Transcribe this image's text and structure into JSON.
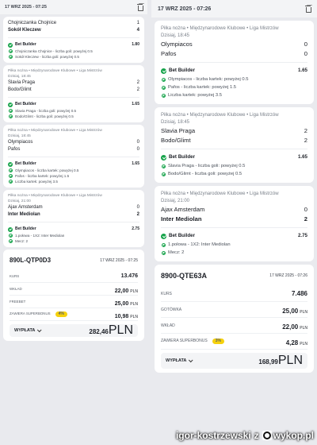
{
  "left": {
    "header": {
      "date": "17 WRZ 2025 - 07:25"
    },
    "cards": [
      {
        "meta_league": "",
        "meta_time": "",
        "teams": [
          {
            "name": "Chojniczanka Chojnice",
            "score": "1"
          },
          {
            "name": "Sokół Kleczew",
            "score": "4"
          }
        ],
        "bb_label": "Bet Builder",
        "bb_odds": "1.80",
        "selections": [
          "Chojniczanka Chojnice - liczba goli: powyżej 0.5",
          "Sokół Kleczew - liczba goli: powyżej 0.5"
        ]
      },
      {
        "meta_league": "Piłka nożna • Międzynarodowe Klubowe • Liga Mistrzów",
        "meta_time": "Dzisiaj, 18:45",
        "teams": [
          {
            "name": "Slavia Praga",
            "score": "2"
          },
          {
            "name": "Bodo/Glimt",
            "score": "2"
          }
        ],
        "bb_label": "Bet Builder",
        "bb_odds": "1.65",
        "selections": [
          "Slavia Praga - liczba goli: powyżej 0.5",
          "Bodo/Glimt - liczba goli: powyżej 0.5"
        ]
      },
      {
        "meta_league": "Piłka nożna • Międzynarodowe Klubowe • Liga Mistrzów",
        "meta_time": "Dzisiaj, 18:45",
        "teams": [
          {
            "name": "Olympiacos",
            "score": "0"
          },
          {
            "name": "Pafos",
            "score": "0"
          }
        ],
        "bb_label": "Bet Builder",
        "bb_odds": "1.65",
        "selections": [
          "Olympiacos - liczba kartek: powyżej 0.5",
          "Pafos - liczba kartek: powyżej 1.5",
          "Liczba kartek: powyżej 3.5"
        ]
      },
      {
        "meta_league": "Piłka nożna • Międzynarodowe Klubowe • Liga Mistrzów",
        "meta_time": "Dzisiaj, 21:00",
        "teams": [
          {
            "name": "Ajax Amsterdam",
            "score": "0"
          },
          {
            "name": "Inter Mediolan",
            "score": "2"
          }
        ],
        "bb_label": "Bet Builder",
        "bb_odds": "2.75",
        "selections": [
          "1.połowa - 1X2: Inter Mediolan",
          "Mecz: 2"
        ]
      }
    ],
    "slip": {
      "id": "890L-QTP0D3",
      "date": "17 WRZ 2025 - 07:25",
      "rows": [
        {
          "label": "KURS",
          "value": "13.476",
          "currency": ""
        },
        {
          "label": "WKŁAD",
          "value": "22,00",
          "currency": "PLN"
        },
        {
          "label": "FREEBET",
          "value": "25,00",
          "currency": "PLN"
        },
        {
          "label": "ZAWIERA SUPERBONUS",
          "badge": "4%",
          "value": "10,98",
          "currency": "PLN"
        }
      ],
      "payout_label": "WYPŁATA",
      "payout_value": "282,46",
      "payout_currency": "PLN"
    }
  },
  "right": {
    "header": {
      "date": "17 WRZ 2025 - 07:26"
    },
    "cards": [
      {
        "meta_league": "Piłka nożna • Międzynarodowe Klubowe • Liga Mistrzów",
        "meta_time": "Dzisiaj, 18:45",
        "teams": [
          {
            "name": "Olympiacos",
            "score": "0"
          },
          {
            "name": "Pafos",
            "score": "0"
          }
        ],
        "bb_label": "Bet Builder",
        "bb_odds": "1.65",
        "selections": [
          "Olympiacos - liczba kartek: powyżej 0.5",
          "Pafos - liczba kartek: powyżej 1.5",
          "Liczba kartek: powyżej 3.5"
        ]
      },
      {
        "meta_league": "Piłka nożna • Międzynarodowe Klubowe • Liga Mistrzów",
        "meta_time": "Dzisiaj, 18:45",
        "teams": [
          {
            "name": "Slavia Praga",
            "score": "2"
          },
          {
            "name": "Bodo/Glimt",
            "score": "2"
          }
        ],
        "bb_label": "Bet Builder",
        "bb_odds": "1.65",
        "selections": [
          "Slavia Praga - liczba goli: powyżej 0.5",
          "Bodo/Glimt - liczba goli: powyżej 0.5"
        ]
      },
      {
        "meta_league": "Piłka nożna • Międzynarodowe Klubowe • Liga Mistrzów",
        "meta_time": "Dzisiaj, 21:00",
        "teams": [
          {
            "name": "Ajax Amsterdam",
            "score": "0"
          },
          {
            "name": "Inter Mediolan",
            "score": "2"
          }
        ],
        "bb_label": "Bet Builder",
        "bb_odds": "2.75",
        "selections": [
          "1.połowa - 1X2: Inter Mediolan",
          "Mecz: 2"
        ]
      }
    ],
    "slip": {
      "id": "8900-QTE63A",
      "date": "17 WRZ 2025 - 07:26",
      "rows": [
        {
          "label": "KURS",
          "value": "7.486",
          "currency": ""
        },
        {
          "label": "GOTÓWKA",
          "value": "25,00",
          "currency": "PLN"
        },
        {
          "label": "WKŁAD",
          "value": "22,00",
          "currency": "PLN"
        },
        {
          "label": "ZAWIERA SUPERBONUS",
          "badge": "3%",
          "value": "4,28",
          "currency": "PLN"
        }
      ],
      "payout_label": "WYPŁATA",
      "payout_value": "168,99",
      "payout_currency": "PLN"
    }
  },
  "footer": {
    "username": "igor-kostrzewski",
    "suffix": "z",
    "site": "wykop.pl"
  },
  "colors": {
    "accent_green": "#16a34a",
    "badge_yellow": "#f5d10d",
    "background": "#e9eaee"
  }
}
